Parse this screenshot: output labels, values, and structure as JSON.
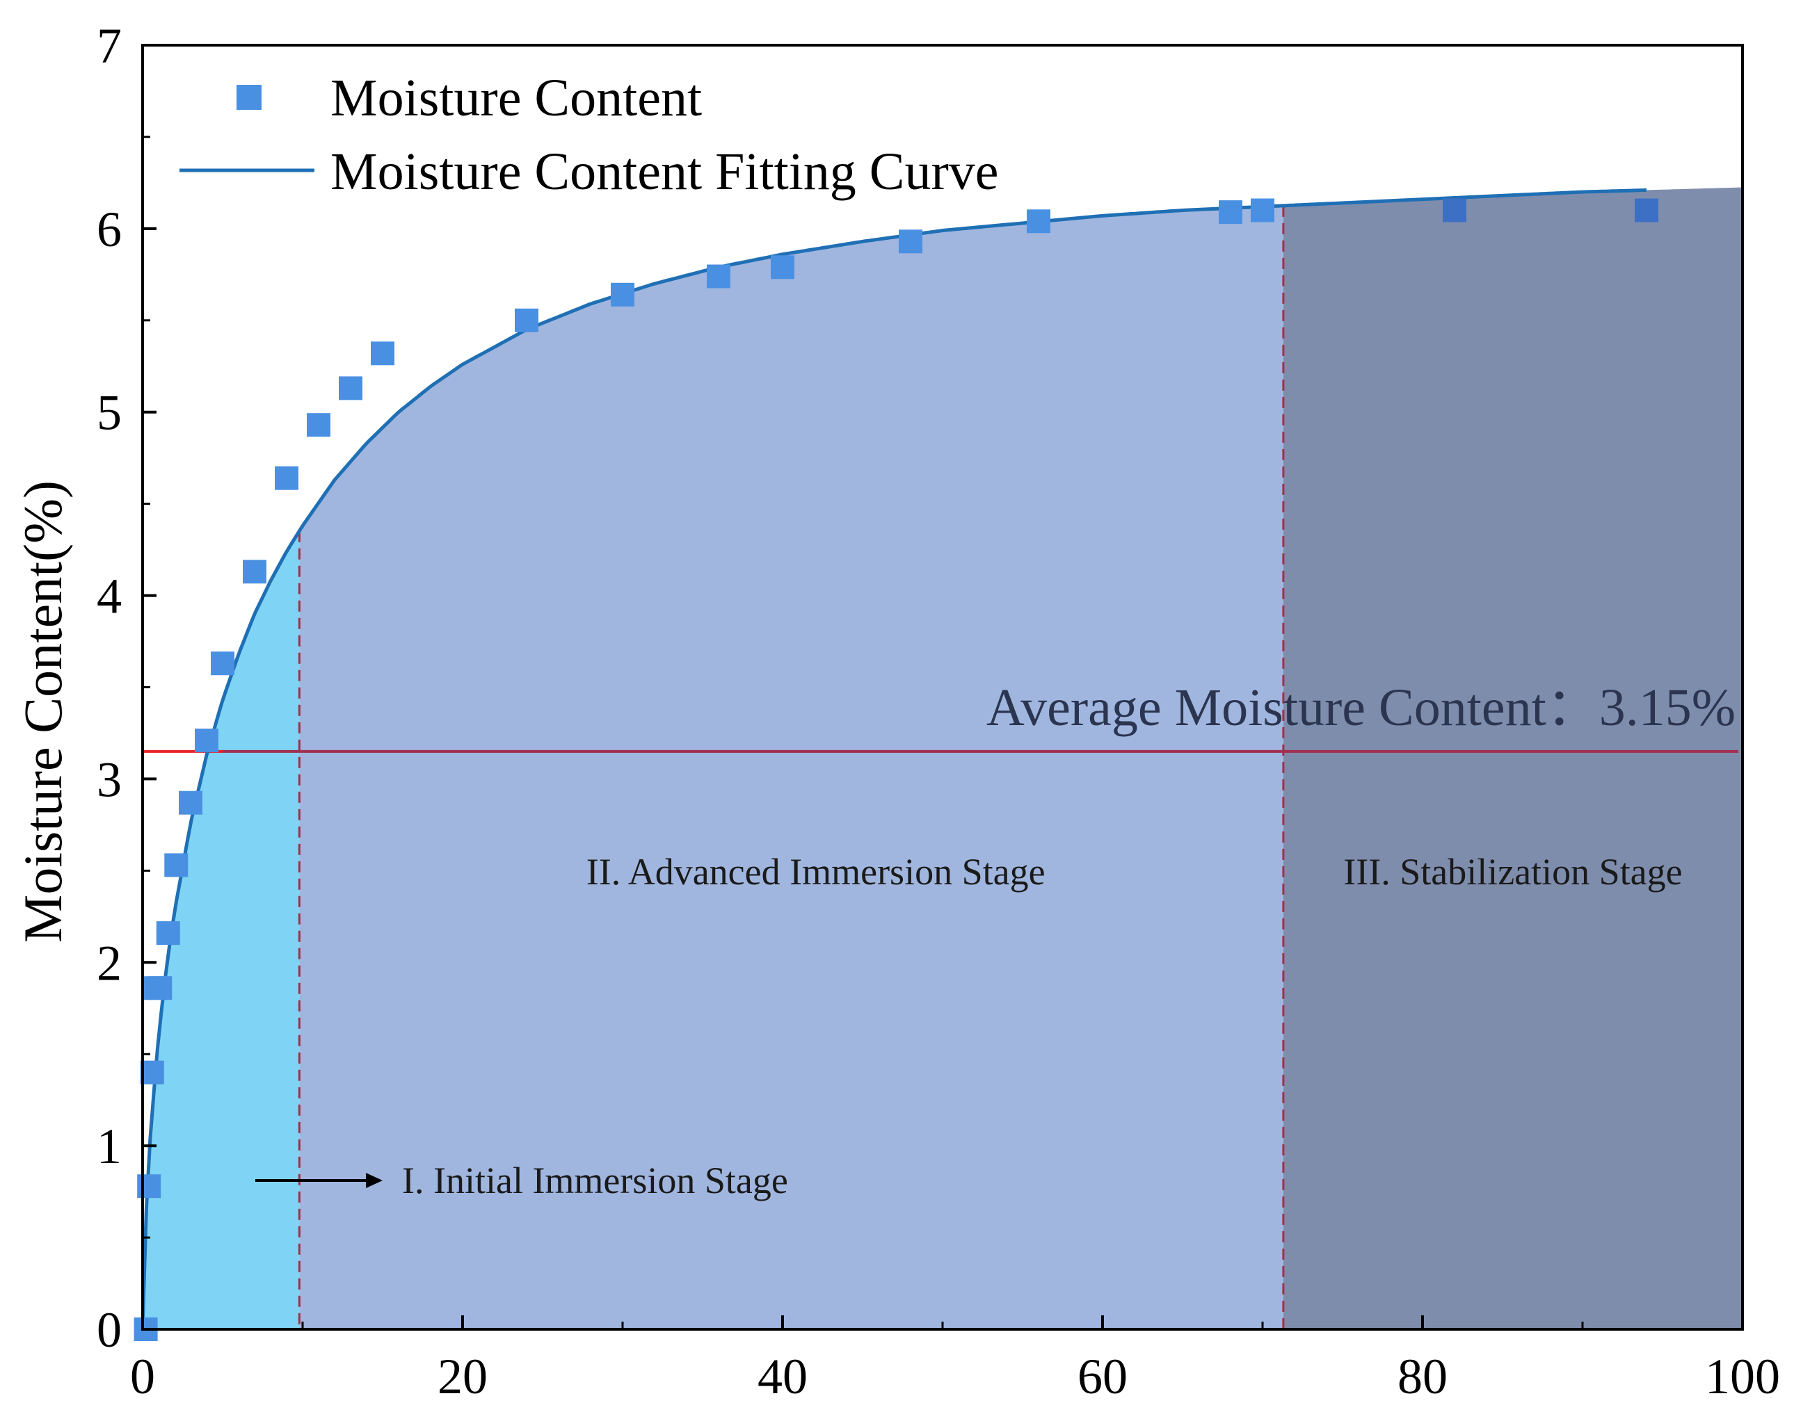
{
  "chart_data": {
    "type": "scatter",
    "title": "",
    "xlabel": "",
    "ylabel": "Moisture Content(%)",
    "xlim": [
      0,
      100
    ],
    "ylim": [
      0,
      7
    ],
    "x_ticks": [
      0,
      20,
      40,
      60,
      80,
      100
    ],
    "y_ticks": [
      0,
      1,
      2,
      3,
      4,
      5,
      6,
      7
    ],
    "grid": false,
    "legend_position": "top-left",
    "series": [
      {
        "name": "Moisture Content",
        "kind": "scatter",
        "marker": "square",
        "color": "#4a90e2",
        "x": [
          0.2,
          0.4,
          0.6,
          0.8,
          1.1,
          1.6,
          2.1,
          3.0,
          4.0,
          5.0,
          7.0,
          9.0,
          11.0,
          13.0,
          15.0,
          24.0,
          30.0,
          36.0,
          40.0,
          48.0,
          56.0,
          68.0,
          70.0,
          82.0,
          94.0
        ],
        "y": [
          0.0,
          0.78,
          1.4,
          1.86,
          1.86,
          2.16,
          2.53,
          2.87,
          3.21,
          3.63,
          4.13,
          4.64,
          4.93,
          5.13,
          5.32,
          5.5,
          5.64,
          5.74,
          5.79,
          5.93,
          6.04,
          6.09,
          6.1,
          6.1,
          6.1
        ]
      },
      {
        "name": "Moisture Content Fitting Curve",
        "kind": "line",
        "color": "#1f6fb5",
        "x": [
          0,
          0.25,
          0.5,
          1,
          1.5,
          2,
          3,
          4,
          5,
          6,
          7,
          8,
          9,
          10,
          12,
          14,
          16,
          18,
          20,
          24,
          28,
          32,
          36,
          40,
          45,
          50,
          55,
          60,
          65,
          70,
          75,
          80,
          85,
          90,
          94
        ],
        "y": [
          0,
          0.7,
          1.08,
          1.6,
          1.98,
          2.28,
          2.76,
          3.13,
          3.43,
          3.68,
          3.9,
          4.08,
          4.24,
          4.38,
          4.63,
          4.83,
          5.0,
          5.14,
          5.26,
          5.45,
          5.59,
          5.7,
          5.79,
          5.86,
          5.93,
          5.99,
          6.03,
          6.07,
          6.1,
          6.12,
          6.14,
          6.16,
          6.18,
          6.2,
          6.21
        ]
      }
    ],
    "reference_line": {
      "y": 3.15,
      "color": "#e8242b",
      "label_prefix": "Average Moisture Content：",
      "label_value": "3.15%"
    },
    "stages": [
      {
        "x_start": 0,
        "x_end": 9.8,
        "label": "I. Initial Immersion Stage",
        "color": "#7fd4f5"
      },
      {
        "x_start": 9.8,
        "x_end": 71.3,
        "label": "II. Advanced Immersion Stage",
        "color": "#a0b6df"
      },
      {
        "x_start": 71.3,
        "x_end": 100,
        "label": "III. Stabilization Stage",
        "color": "#7f8dad"
      }
    ]
  }
}
